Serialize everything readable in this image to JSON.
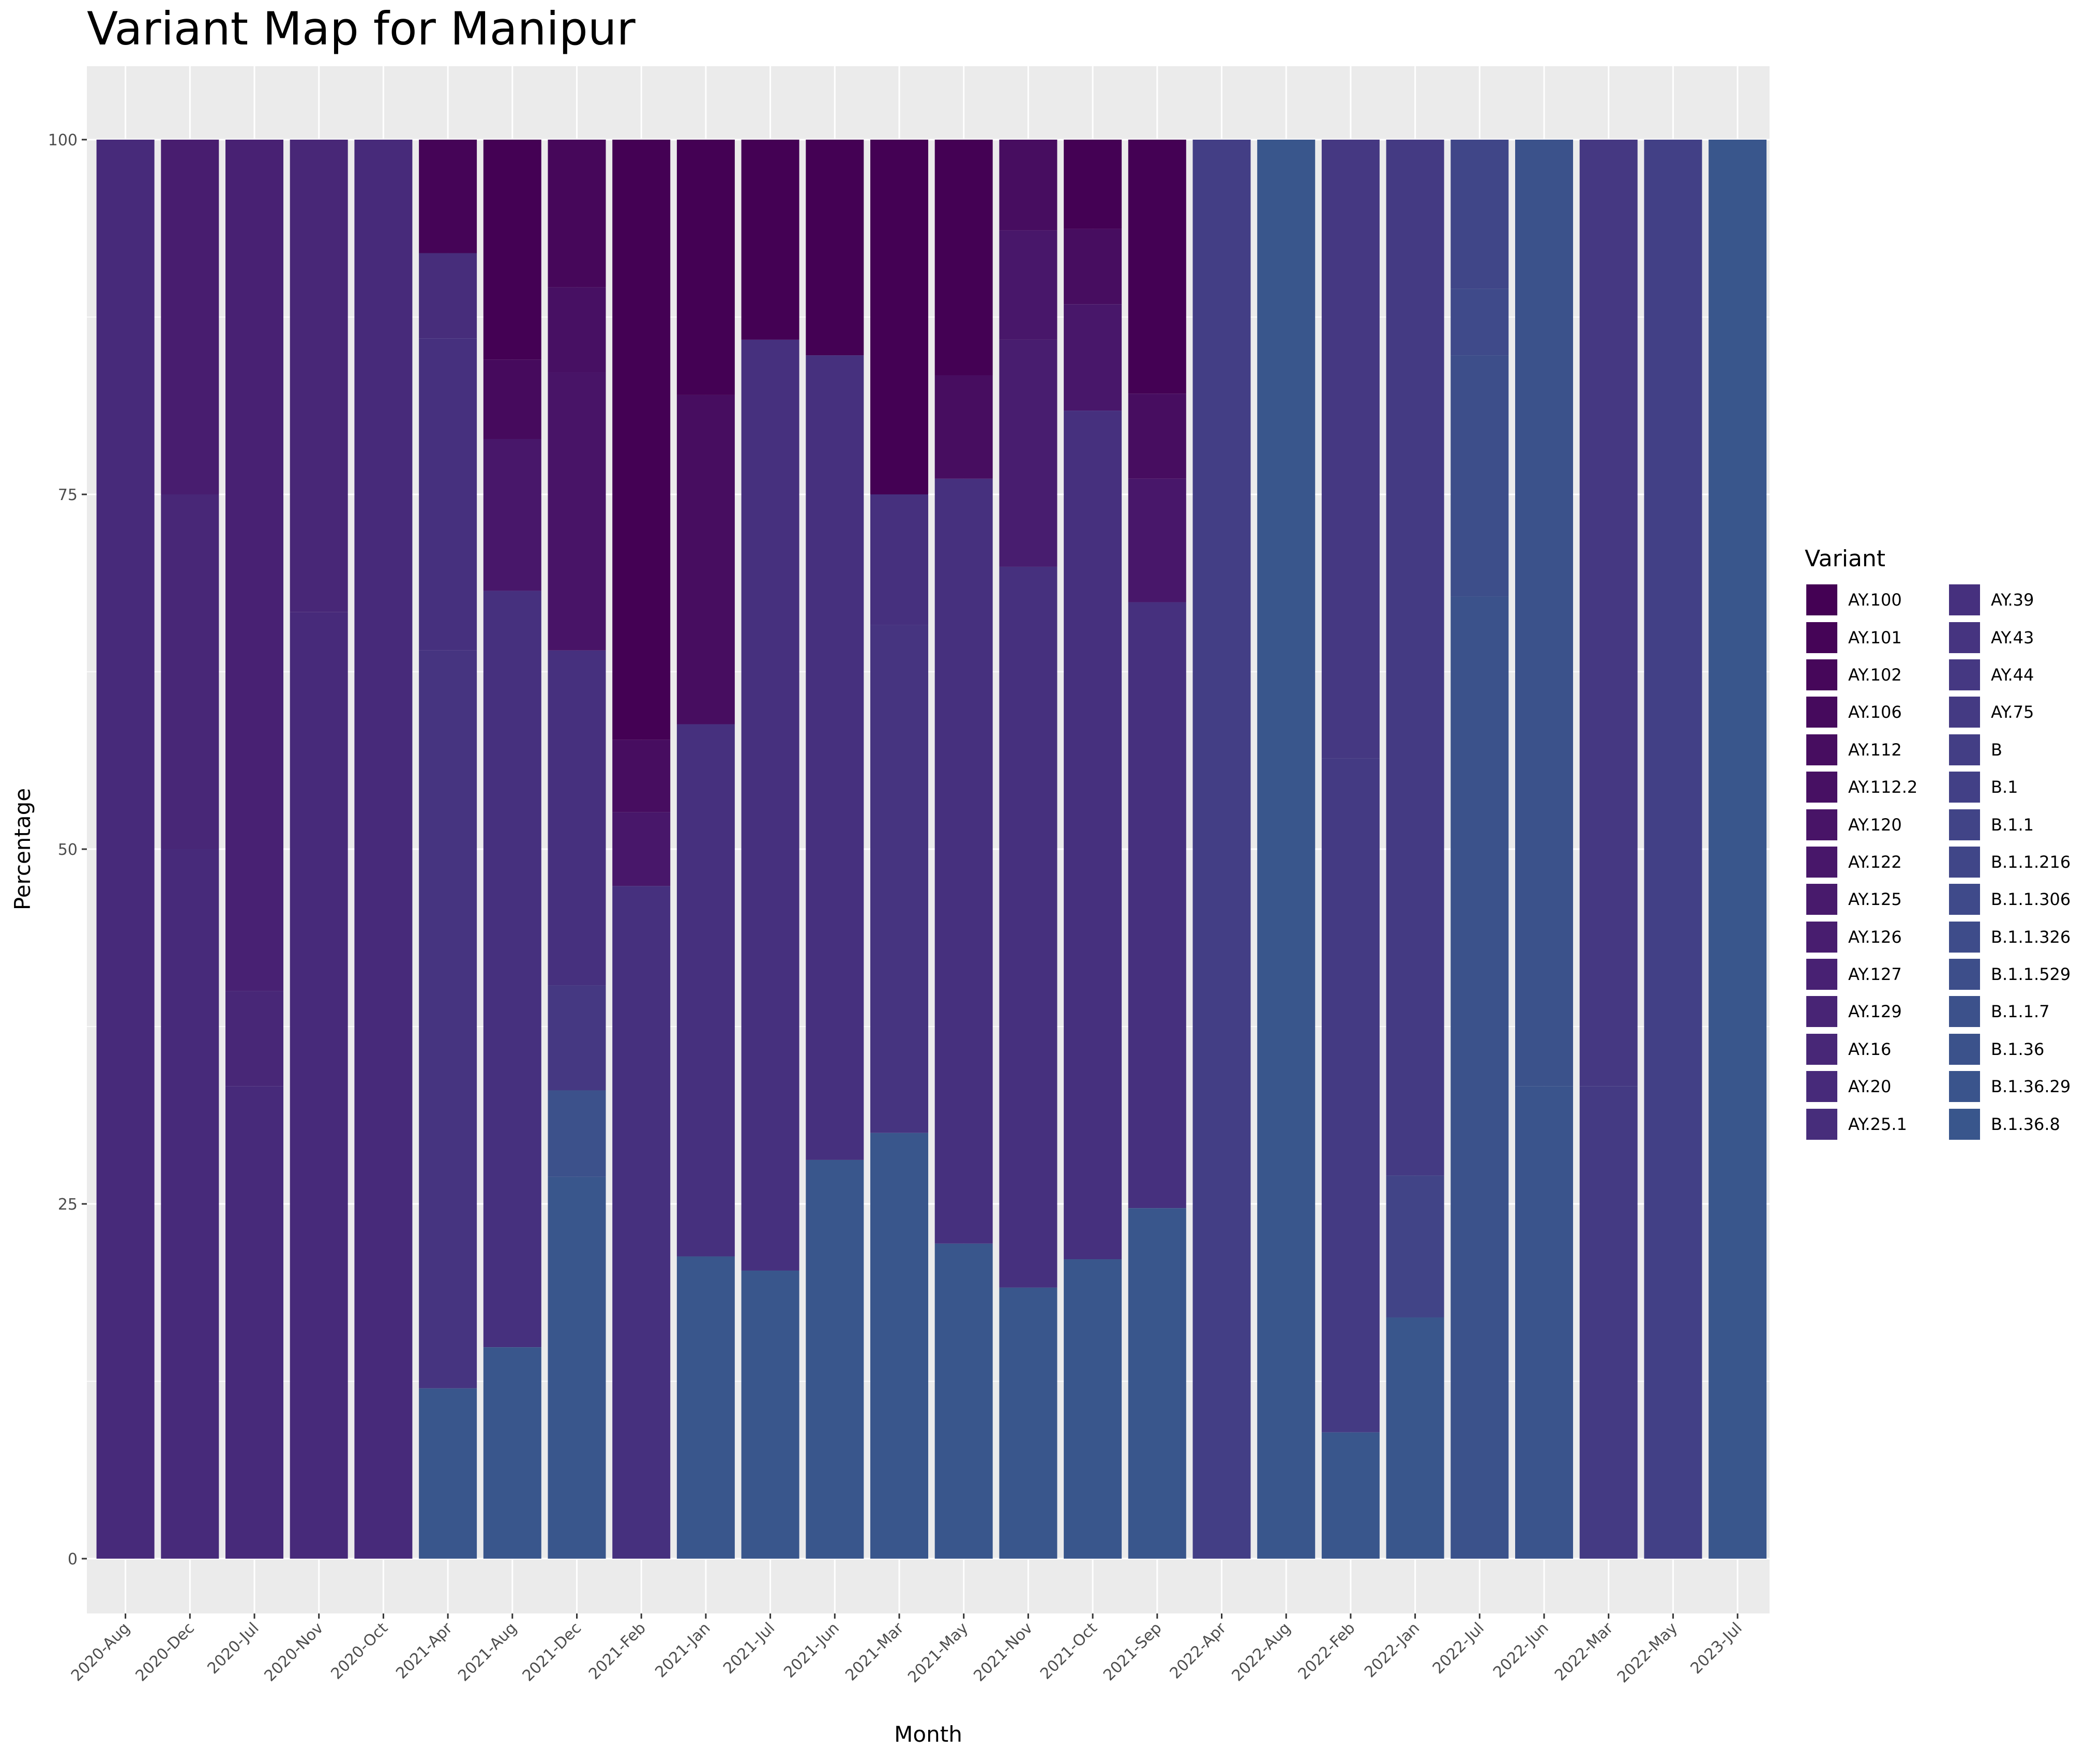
{
  "chart_data": {
    "type": "bar",
    "stacked": true,
    "title": "Variant Map for Manipur",
    "xlabel": "Month",
    "ylabel": "Percentage",
    "ylim": [
      0,
      100
    ],
    "yticks": [
      0,
      25,
      50,
      75,
      100
    ],
    "grid": true,
    "legend_title": "Variant",
    "legend_position": "right",
    "categories": [
      "2020-Aug",
      "2020-Dec",
      "2020-Jul",
      "2020-Nov",
      "2020-Oct",
      "2021-Apr",
      "2021-Aug",
      "2021-Dec",
      "2021-Feb",
      "2021-Jan",
      "2021-Jul",
      "2021-Jun",
      "2021-Mar",
      "2021-May",
      "2021-Nov",
      "2021-Oct",
      "2021-Sep",
      "2022-Apr",
      "2022-Aug",
      "2022-Feb",
      "2022-Jan",
      "2022-Jul",
      "2022-Jun",
      "2022-Mar",
      "2022-May",
      "2023-Jul"
    ],
    "variants": [
      "AY.100",
      "AY.101",
      "AY.102",
      "AY.106",
      "AY.112",
      "AY.112.2",
      "AY.120",
      "AY.122",
      "AY.125",
      "AY.126",
      "AY.127",
      "AY.129",
      "AY.16",
      "AY.20",
      "AY.25.1",
      "AY.39",
      "AY.43",
      "AY.44",
      "AY.75",
      "B",
      "B.1",
      "B.1.1",
      "B.1.1.216",
      "B.1.1.306",
      "B.1.1.326",
      "B.1.1.529",
      "B.1.1.7",
      "B.1.36",
      "B.1.36.29",
      "B.1.36.8"
    ],
    "colors": {
      "AY.100": "#440154",
      "AY.101": "#450457",
      "AY.102": "#46075a",
      "AY.106": "#460a5d",
      "AY.112": "#470d60",
      "AY.112.2": "#471063",
      "AY.120": "#481467",
      "AY.122": "#48176a",
      "AY.125": "#481a6c",
      "AY.126": "#481d6f",
      "AY.127": "#482173",
      "AY.129": "#482475",
      "AY.16": "#482777",
      "AY.20": "#472a7a",
      "AY.25.1": "#472d7b",
      "AY.39": "#46307e",
      "AY.43": "#463480",
      "AY.44": "#453882",
      "AY.75": "#443a83",
      "B": "#433e85",
      "B.1": "#424086",
      "B.1.1": "#414487",
      "B.1.1.216": "#404688",
      "B.1.1.306": "#3f4a8a",
      "B.1.1.326": "#3e4c8a",
      "B.1.1.529": "#3d4e8a",
      "B.1.1.7": "#3c518b",
      "B.1.36": "#3b528b",
      "B.1.36.29": "#3a548c",
      "B.1.36.8": "#39568c"
    },
    "stacks": [
      {
        "category": "2020-Aug",
        "segments": [
          {
            "variant": "AY.20",
            "value": 100
          }
        ]
      },
      {
        "category": "2020-Dec",
        "segments": [
          {
            "variant": "AY.126",
            "value": 25
          },
          {
            "variant": "AY.16",
            "value": 25
          },
          {
            "variant": "AY.20",
            "value": 50
          }
        ]
      },
      {
        "category": "2020-Jul",
        "segments": [
          {
            "variant": "AY.127",
            "value": 60
          },
          {
            "variant": "AY.16",
            "value": 6.7
          },
          {
            "variant": "AY.20",
            "value": 33.3
          }
        ]
      },
      {
        "category": "2020-Nov",
        "segments": [
          {
            "variant": "AY.16",
            "value": 33.3
          },
          {
            "variant": "AY.20",
            "value": 66.7
          }
        ]
      },
      {
        "category": "2020-Oct",
        "segments": [
          {
            "variant": "AY.20",
            "value": 100
          }
        ]
      },
      {
        "category": "2021-Apr",
        "segments": [
          {
            "variant": "AY.101",
            "value": 8
          },
          {
            "variant": "AY.25.1",
            "value": 6
          },
          {
            "variant": "AY.39",
            "value": 22
          },
          {
            "variant": "AY.43",
            "value": 52
          },
          {
            "variant": "B.1.36.8",
            "value": 12
          }
        ]
      },
      {
        "category": "2021-Aug",
        "segments": [
          {
            "variant": "AY.100",
            "value": 15.5
          },
          {
            "variant": "AY.106",
            "value": 5.6
          },
          {
            "variant": "AY.122",
            "value": 10.7
          },
          {
            "variant": "AY.39",
            "value": 53.3
          },
          {
            "variant": "B.1.36.8",
            "value": 14.9
          }
        ]
      },
      {
        "category": "2021-Dec",
        "segments": [
          {
            "variant": "AY.102",
            "value": 10.4
          },
          {
            "variant": "AY.112.2",
            "value": 6
          },
          {
            "variant": "AY.120",
            "value": 19.6
          },
          {
            "variant": "AY.39",
            "value": 23.6
          },
          {
            "variant": "AY.44",
            "value": 7.4
          },
          {
            "variant": "B.1.1.7",
            "value": 6.1
          },
          {
            "variant": "B.1.36.8",
            "value": 26.9
          }
        ]
      },
      {
        "category": "2021-Feb",
        "segments": [
          {
            "variant": "AY.100",
            "value": 42.3
          },
          {
            "variant": "AY.112",
            "value": 5.1
          },
          {
            "variant": "AY.122",
            "value": 5.2
          },
          {
            "variant": "AY.39",
            "value": 47.4
          }
        ]
      },
      {
        "category": "2021-Jan",
        "segments": [
          {
            "variant": "AY.100",
            "value": 18
          },
          {
            "variant": "AY.112",
            "value": 23.2
          },
          {
            "variant": "AY.39",
            "value": 37.5
          },
          {
            "variant": "B.1.36.8",
            "value": 21.3
          }
        ]
      },
      {
        "category": "2021-Jul",
        "segments": [
          {
            "variant": "AY.100",
            "value": 14.1
          },
          {
            "variant": "AY.39",
            "value": 65.6
          },
          {
            "variant": "B.1.36.8",
            "value": 20.3
          }
        ]
      },
      {
        "category": "2021-Jun",
        "segments": [
          {
            "variant": "AY.100",
            "value": 15.2
          },
          {
            "variant": "AY.39",
            "value": 56.7
          },
          {
            "variant": "B.1.36.8",
            "value": 28.1
          }
        ]
      },
      {
        "category": "2021-Mar",
        "segments": [
          {
            "variant": "AY.100",
            "value": 25
          },
          {
            "variant": "AY.39",
            "value": 9.2
          },
          {
            "variant": "AY.43",
            "value": 35.8
          },
          {
            "variant": "B.1.36.8",
            "value": 30
          }
        ]
      },
      {
        "category": "2021-May",
        "segments": [
          {
            "variant": "AY.100",
            "value": 16.6
          },
          {
            "variant": "AY.112",
            "value": 7.3
          },
          {
            "variant": "AY.39",
            "value": 53.9
          },
          {
            "variant": "B.1.36.8",
            "value": 22.2
          }
        ]
      },
      {
        "category": "2021-Nov",
        "segments": [
          {
            "variant": "AY.112",
            "value": 6.4
          },
          {
            "variant": "AY.122",
            "value": 7.7
          },
          {
            "variant": "AY.126",
            "value": 16
          },
          {
            "variant": "AY.39",
            "value": 50.8
          },
          {
            "variant": "B.1.36.8",
            "value": 19.1
          }
        ]
      },
      {
        "category": "2021-Oct",
        "segments": [
          {
            "variant": "AY.100",
            "value": 6.3
          },
          {
            "variant": "AY.112",
            "value": 5.3
          },
          {
            "variant": "AY.122",
            "value": 7.5
          },
          {
            "variant": "AY.39",
            "value": 59.8
          },
          {
            "variant": "B.1.36.8",
            "value": 21.1
          }
        ]
      },
      {
        "category": "2021-Sep",
        "segments": [
          {
            "variant": "AY.100",
            "value": 17.9
          },
          {
            "variant": "AY.112",
            "value": 6
          },
          {
            "variant": "AY.122",
            "value": 8.7
          },
          {
            "variant": "AY.39",
            "value": 42.7
          },
          {
            "variant": "B.1.36.8",
            "value": 24.7
          }
        ]
      },
      {
        "category": "2022-Apr",
        "segments": [
          {
            "variant": "B",
            "value": 100
          }
        ]
      },
      {
        "category": "2022-Aug",
        "segments": [
          {
            "variant": "B.1.36.8",
            "value": 100
          }
        ]
      },
      {
        "category": "2022-Feb",
        "segments": [
          {
            "variant": "AY.44",
            "value": 43.6
          },
          {
            "variant": "AY.75",
            "value": 47.5
          },
          {
            "variant": "B.1.36.8",
            "value": 8.9
          }
        ]
      },
      {
        "category": "2022-Jan",
        "segments": [
          {
            "variant": "AY.75",
            "value": 73
          },
          {
            "variant": "B.1.1",
            "value": 10
          },
          {
            "variant": "B.1.36.8",
            "value": 17
          }
        ]
      },
      {
        "category": "2022-Jul",
        "segments": [
          {
            "variant": "B.1.1.216",
            "value": 10.5
          },
          {
            "variant": "B.1.1.306",
            "value": 4.7
          },
          {
            "variant": "B.1.1.529",
            "value": 17
          },
          {
            "variant": "B.1.36",
            "value": 67.8
          }
        ]
      },
      {
        "category": "2022-Jun",
        "segments": [
          {
            "variant": "B.1.36",
            "value": 66.7
          },
          {
            "variant": "B.1.36.29",
            "value": 33.3
          }
        ]
      },
      {
        "category": "2022-Mar",
        "segments": [
          {
            "variant": "AY.44",
            "value": 66.7
          },
          {
            "variant": "AY.75",
            "value": 33.3
          }
        ]
      },
      {
        "category": "2022-May",
        "segments": [
          {
            "variant": "B.1",
            "value": 100
          }
        ]
      },
      {
        "category": "2023-Jul",
        "segments": [
          {
            "variant": "B.1.36.8",
            "value": 100
          }
        ]
      }
    ]
  }
}
